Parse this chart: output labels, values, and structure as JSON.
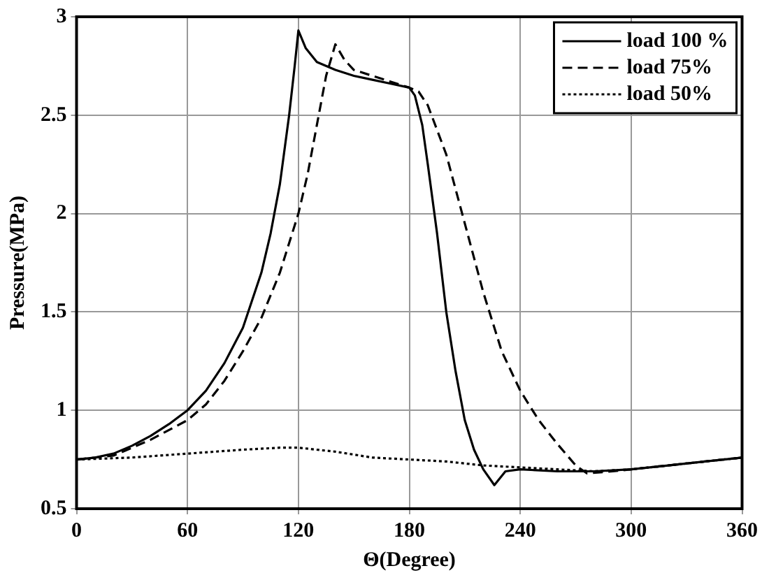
{
  "chart_data": {
    "type": "line",
    "xlabel": "Θ(Degree)",
    "ylabel": "Pressure(MPa)",
    "xlim": [
      0,
      360
    ],
    "xticks": [
      0,
      60,
      120,
      180,
      240,
      300,
      360
    ],
    "ylim": [
      0.5,
      3
    ],
    "yticks": [
      0.5,
      1,
      1.5,
      2,
      2.5,
      3
    ],
    "grid": true,
    "legend": "top right",
    "marker": "none",
    "series": [
      {
        "name": "load 100 %",
        "color": "#000000",
        "line_style": "solid",
        "x": [
          0,
          10,
          20,
          30,
          40,
          50,
          60,
          70,
          80,
          90,
          100,
          105,
          110,
          115,
          118,
          120,
          124,
          130,
          140,
          150,
          160,
          170,
          180,
          183,
          187,
          190,
          195,
          200,
          205,
          210,
          215,
          220,
          226,
          232,
          240,
          260,
          280,
          300,
          320,
          340,
          360
        ],
        "values": [
          0.75,
          0.76,
          0.78,
          0.82,
          0.87,
          0.93,
          1.0,
          1.1,
          1.24,
          1.42,
          1.7,
          1.9,
          2.15,
          2.5,
          2.75,
          2.93,
          2.84,
          2.77,
          2.73,
          2.7,
          2.68,
          2.66,
          2.64,
          2.6,
          2.45,
          2.25,
          1.9,
          1.5,
          1.2,
          0.95,
          0.8,
          0.7,
          0.62,
          0.69,
          0.7,
          0.69,
          0.69,
          0.7,
          0.72,
          0.74,
          0.76
        ]
      },
      {
        "name": "load 75%",
        "color": "#000000",
        "line_style": "dashed",
        "x": [
          0,
          20,
          40,
          60,
          70,
          80,
          90,
          100,
          110,
          120,
          125,
          130,
          135,
          140,
          145,
          150,
          160,
          170,
          180,
          185,
          190,
          200,
          210,
          220,
          230,
          240,
          250,
          260,
          270,
          276,
          290,
          300,
          360
        ],
        "values": [
          0.75,
          0.77,
          0.85,
          0.95,
          1.03,
          1.15,
          1.3,
          1.47,
          1.7,
          2.0,
          2.2,
          2.45,
          2.7,
          2.86,
          2.78,
          2.73,
          2.7,
          2.67,
          2.64,
          2.62,
          2.55,
          2.3,
          1.95,
          1.6,
          1.3,
          1.1,
          0.95,
          0.83,
          0.72,
          0.68,
          0.69,
          0.7,
          0.76
        ]
      },
      {
        "name": "load 50%",
        "color": "#000000",
        "line_style": "dotted",
        "x": [
          0,
          30,
          60,
          90,
          110,
          120,
          140,
          160,
          180,
          200,
          220,
          240,
          260,
          280,
          300,
          360
        ],
        "values": [
          0.75,
          0.76,
          0.78,
          0.8,
          0.81,
          0.81,
          0.79,
          0.76,
          0.75,
          0.74,
          0.72,
          0.71,
          0.7,
          0.69,
          0.7,
          0.76
        ]
      }
    ]
  }
}
